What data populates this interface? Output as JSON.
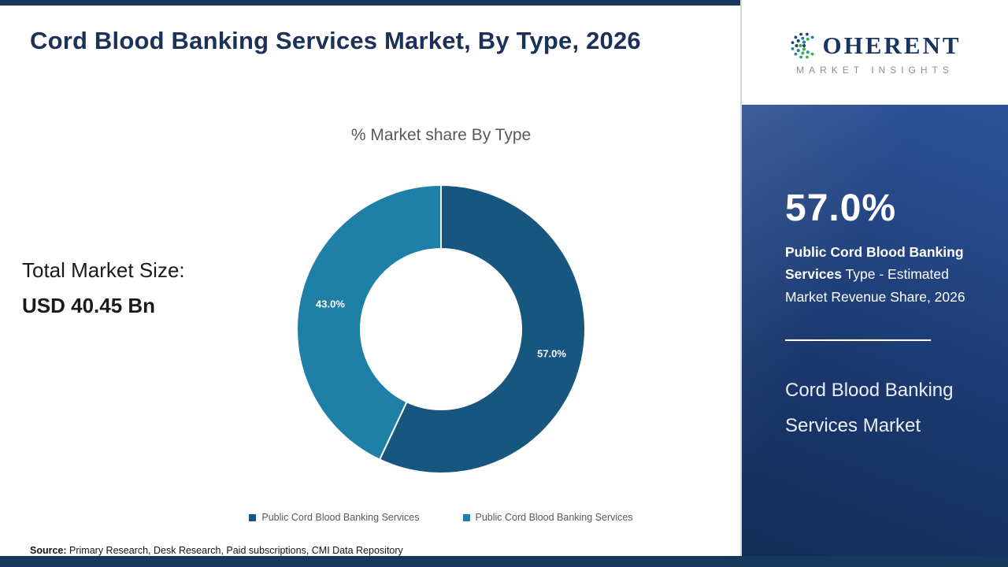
{
  "page": {
    "title": "Cord Blood Banking Services Market, By Type, 2026"
  },
  "left": {
    "total_market_label": "Total Market Size:",
    "total_market_value": "USD 40.45 Bn"
  },
  "chart_data": {
    "type": "pie",
    "donut": true,
    "title": "% Market share By Type",
    "slices": [
      {
        "label": "Public Cord Blood Banking Services",
        "value": 57.0,
        "display": "57.0%",
        "color": "#16567f"
      },
      {
        "label": "Public Cord Blood Banking Services",
        "value": 43.0,
        "display": "43.0%",
        "color": "#1e80a6"
      }
    ],
    "start_angle_deg": 90,
    "direction": "clockwise",
    "legend_position": "bottom"
  },
  "source": {
    "label": "Source:",
    "text": " Primary Research, Desk Research, Paid subscriptions, CMI Data Repository"
  },
  "sidebar": {
    "logo": {
      "letters_after_icon": "OHERENT",
      "subtext": "MARKET INSIGHTS"
    },
    "stat_value": "57.0%",
    "stat_bold": "Public Cord Blood Banking Services",
    "stat_rest": " Type - Estimated Market Revenue Share, 2026",
    "panel_title": "Cord Blood Banking Services Market"
  },
  "colors": {
    "accent_navy": "#17375e",
    "panel_blue": "#1a366b",
    "slice_dark": "#16567f",
    "slice_light": "#1e80a6"
  }
}
